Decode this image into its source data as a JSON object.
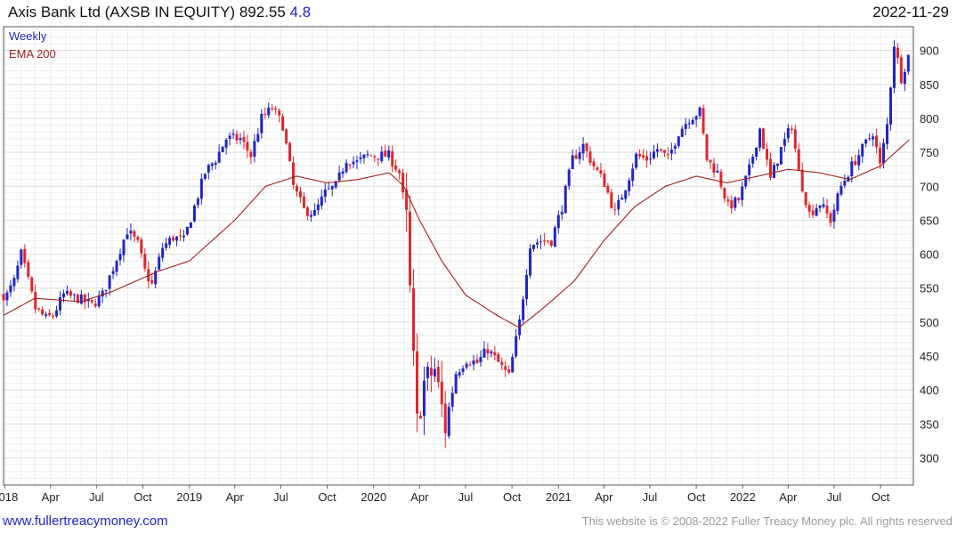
{
  "header": {
    "name": "Axis Bank Ltd (AXSB IN EQUITY)",
    "price": "892.55",
    "change": "4.8",
    "date": "2022-11-29"
  },
  "footer": {
    "site": "www.fullertreacymoney.com",
    "copyright": "This website is © 2008-2022 Fuller Treacy Money plc. All rights reserved"
  },
  "colors": {
    "up": "#1f25c8",
    "down": "#e0262a",
    "ema": "#a01e1e",
    "grid": "#e6e6e6"
  },
  "chart_data": {
    "type": "candlestick",
    "frequency": "Weekly",
    "legend": [
      "Weekly",
      "EMA 200"
    ],
    "legend_position": "top-left",
    "y_axis": {
      "side": "right",
      "ylim": [
        260,
        935
      ],
      "ticks": [
        300,
        350,
        400,
        450,
        500,
        550,
        600,
        650,
        700,
        750,
        800,
        850,
        900
      ]
    },
    "x_axis": {
      "start": "2017-12-29",
      "end": "2022-12-05",
      "tick_labels": [
        {
          "date": "2018-01-01",
          "label": "2018"
        },
        {
          "date": "2018-04-01",
          "label": "Apr"
        },
        {
          "date": "2018-07-01",
          "label": "Jul"
        },
        {
          "date": "2018-10-01",
          "label": "Oct"
        },
        {
          "date": "2019-01-01",
          "label": "2019"
        },
        {
          "date": "2019-04-01",
          "label": "Apr"
        },
        {
          "date": "2019-07-01",
          "label": "Jul"
        },
        {
          "date": "2019-10-01",
          "label": "Oct"
        },
        {
          "date": "2020-01-01",
          "label": "2020"
        },
        {
          "date": "2020-04-01",
          "label": "Apr"
        },
        {
          "date": "2020-07-01",
          "label": "Jul"
        },
        {
          "date": "2020-10-01",
          "label": "Oct"
        },
        {
          "date": "2021-01-01",
          "label": "2021"
        },
        {
          "date": "2021-04-01",
          "label": "Apr"
        },
        {
          "date": "2021-07-01",
          "label": "Jul"
        },
        {
          "date": "2021-10-01",
          "label": "Oct"
        },
        {
          "date": "2022-01-01",
          "label": "2022"
        },
        {
          "date": "2022-04-01",
          "label": "Apr"
        },
        {
          "date": "2022-07-01",
          "label": "Jul"
        },
        {
          "date": "2022-10-01",
          "label": "Oct"
        }
      ]
    },
    "close_anchors": [
      [
        "2018-01-05",
        540
      ],
      [
        "2018-01-19",
        560
      ],
      [
        "2018-02-02",
        600
      ],
      [
        "2018-02-16",
        560
      ],
      [
        "2018-03-02",
        520
      ],
      [
        "2018-03-23",
        505
      ],
      [
        "2018-04-06",
        510
      ],
      [
        "2018-04-27",
        540
      ],
      [
        "2018-05-25",
        535
      ],
      [
        "2018-06-22",
        525
      ],
      [
        "2018-07-13",
        540
      ],
      [
        "2018-08-03",
        580
      ],
      [
        "2018-08-31",
        635
      ],
      [
        "2018-09-21",
        615
      ],
      [
        "2018-10-05",
        575
      ],
      [
        "2018-10-19",
        555
      ],
      [
        "2018-11-09",
        610
      ],
      [
        "2018-11-30",
        625
      ],
      [
        "2018-12-21",
        620
      ],
      [
        "2019-01-11",
        670
      ],
      [
        "2019-02-01",
        720
      ],
      [
        "2019-02-22",
        740
      ],
      [
        "2019-03-15",
        770
      ],
      [
        "2019-04-12",
        770
      ],
      [
        "2019-05-03",
        745
      ],
      [
        "2019-05-24",
        800
      ],
      [
        "2019-06-14",
        815
      ],
      [
        "2019-07-05",
        790
      ],
      [
        "2019-07-26",
        700
      ],
      [
        "2019-08-16",
        665
      ],
      [
        "2019-09-06",
        660
      ],
      [
        "2019-09-27",
        690
      ],
      [
        "2019-10-18",
        700
      ],
      [
        "2019-11-08",
        740
      ],
      [
        "2019-11-29",
        735
      ],
      [
        "2019-12-20",
        745
      ],
      [
        "2020-01-10",
        745
      ],
      [
        "2020-01-31",
        745
      ],
      [
        "2020-02-21",
        720
      ],
      [
        "2020-03-06",
        650
      ],
      [
        "2020-03-20",
        440
      ],
      [
        "2020-03-27",
        350
      ],
      [
        "2020-04-10",
        410
      ],
      [
        "2020-05-01",
        430
      ],
      [
        "2020-05-22",
        345
      ],
      [
        "2020-06-12",
        425
      ],
      [
        "2020-07-03",
        445
      ],
      [
        "2020-07-24",
        440
      ],
      [
        "2020-08-14",
        460
      ],
      [
        "2020-09-04",
        440
      ],
      [
        "2020-09-25",
        420
      ],
      [
        "2020-10-16",
        500
      ],
      [
        "2020-11-06",
        615
      ],
      [
        "2020-11-27",
        620
      ],
      [
        "2020-12-18",
        620
      ],
      [
        "2021-01-08",
        670
      ],
      [
        "2021-01-29",
        740
      ],
      [
        "2021-02-19",
        760
      ],
      [
        "2021-03-12",
        730
      ],
      [
        "2021-04-02",
        705
      ],
      [
        "2021-04-23",
        660
      ],
      [
        "2021-05-14",
        700
      ],
      [
        "2021-06-04",
        745
      ],
      [
        "2021-06-25",
        740
      ],
      [
        "2021-07-16",
        755
      ],
      [
        "2021-08-06",
        740
      ],
      [
        "2021-08-27",
        780
      ],
      [
        "2021-09-17",
        800
      ],
      [
        "2021-10-08",
        810
      ],
      [
        "2021-10-22",
        740
      ],
      [
        "2021-11-12",
        720
      ],
      [
        "2021-12-03",
        670
      ],
      [
        "2021-12-24",
        680
      ],
      [
        "2022-01-14",
        725
      ],
      [
        "2022-02-04",
        785
      ],
      [
        "2022-02-25",
        710
      ],
      [
        "2022-03-18",
        755
      ],
      [
        "2022-04-08",
        790
      ],
      [
        "2022-04-22",
        720
      ],
      [
        "2022-05-13",
        660
      ],
      [
        "2022-06-03",
        675
      ],
      [
        "2022-06-24",
        650
      ],
      [
        "2022-07-15",
        700
      ],
      [
        "2022-08-05",
        730
      ],
      [
        "2022-08-26",
        755
      ],
      [
        "2022-09-16",
        780
      ],
      [
        "2022-09-30",
        730
      ],
      [
        "2022-10-14",
        790
      ],
      [
        "2022-10-28",
        910
      ],
      [
        "2022-11-11",
        860
      ],
      [
        "2022-11-25",
        892
      ]
    ],
    "ema200_anchors": [
      [
        "2017-12-29",
        510
      ],
      [
        "2018-03-01",
        535
      ],
      [
        "2018-06-01",
        530
      ],
      [
        "2018-08-01",
        545
      ],
      [
        "2018-11-01",
        575
      ],
      [
        "2019-01-01",
        590
      ],
      [
        "2019-04-01",
        650
      ],
      [
        "2019-06-01",
        700
      ],
      [
        "2019-08-01",
        715
      ],
      [
        "2019-10-01",
        705
      ],
      [
        "2019-12-01",
        710
      ],
      [
        "2020-02-01",
        720
      ],
      [
        "2020-03-01",
        700
      ],
      [
        "2020-04-01",
        650
      ],
      [
        "2020-05-15",
        590
      ],
      [
        "2020-07-01",
        540
      ],
      [
        "2020-09-01",
        510
      ],
      [
        "2020-10-15",
        492
      ],
      [
        "2020-12-01",
        520
      ],
      [
        "2021-02-01",
        560
      ],
      [
        "2021-04-01",
        620
      ],
      [
        "2021-06-01",
        670
      ],
      [
        "2021-08-01",
        700
      ],
      [
        "2021-10-01",
        715
      ],
      [
        "2021-12-01",
        705
      ],
      [
        "2022-02-01",
        715
      ],
      [
        "2022-04-01",
        725
      ],
      [
        "2022-06-01",
        720
      ],
      [
        "2022-08-01",
        710
      ],
      [
        "2022-10-01",
        730
      ],
      [
        "2022-11-29",
        770
      ]
    ]
  }
}
